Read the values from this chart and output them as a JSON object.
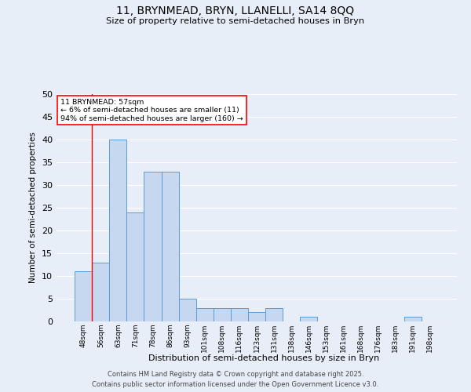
{
  "title1": "11, BRYNMEAD, BRYN, LLANELLI, SA14 8QQ",
  "title2": "Size of property relative to semi-detached houses in Bryn",
  "xlabel": "Distribution of semi-detached houses by size in Bryn",
  "ylabel": "Number of semi-detached properties",
  "categories": [
    "48sqm",
    "56sqm",
    "63sqm",
    "71sqm",
    "78sqm",
    "86sqm",
    "93sqm",
    "101sqm",
    "108sqm",
    "116sqm",
    "123sqm",
    "131sqm",
    "138sqm",
    "146sqm",
    "153sqm",
    "161sqm",
    "168sqm",
    "176sqm",
    "183sqm",
    "191sqm",
    "198sqm"
  ],
  "values": [
    11,
    13,
    40,
    24,
    33,
    33,
    5,
    3,
    3,
    3,
    2,
    3,
    0,
    1,
    0,
    0,
    0,
    0,
    0,
    1,
    0
  ],
  "bar_color": "#c5d8f0",
  "bar_edge_color": "#5b9bd5",
  "red_line_index": 1,
  "annotation_title": "11 BRYNMEAD: 57sqm",
  "annotation_line1": "← 6% of semi-detached houses are smaller (11)",
  "annotation_line2": "94% of semi-detached houses are larger (160) →",
  "annotation_box_color": "white",
  "annotation_box_edge_color": "red",
  "footer1": "Contains HM Land Registry data © Crown copyright and database right 2025.",
  "footer2": "Contains public sector information licensed under the Open Government Licence v3.0.",
  "ylim": [
    0,
    50
  ],
  "yticks": [
    0,
    5,
    10,
    15,
    20,
    25,
    30,
    35,
    40,
    45,
    50
  ],
  "background_color": "#e8eef8"
}
